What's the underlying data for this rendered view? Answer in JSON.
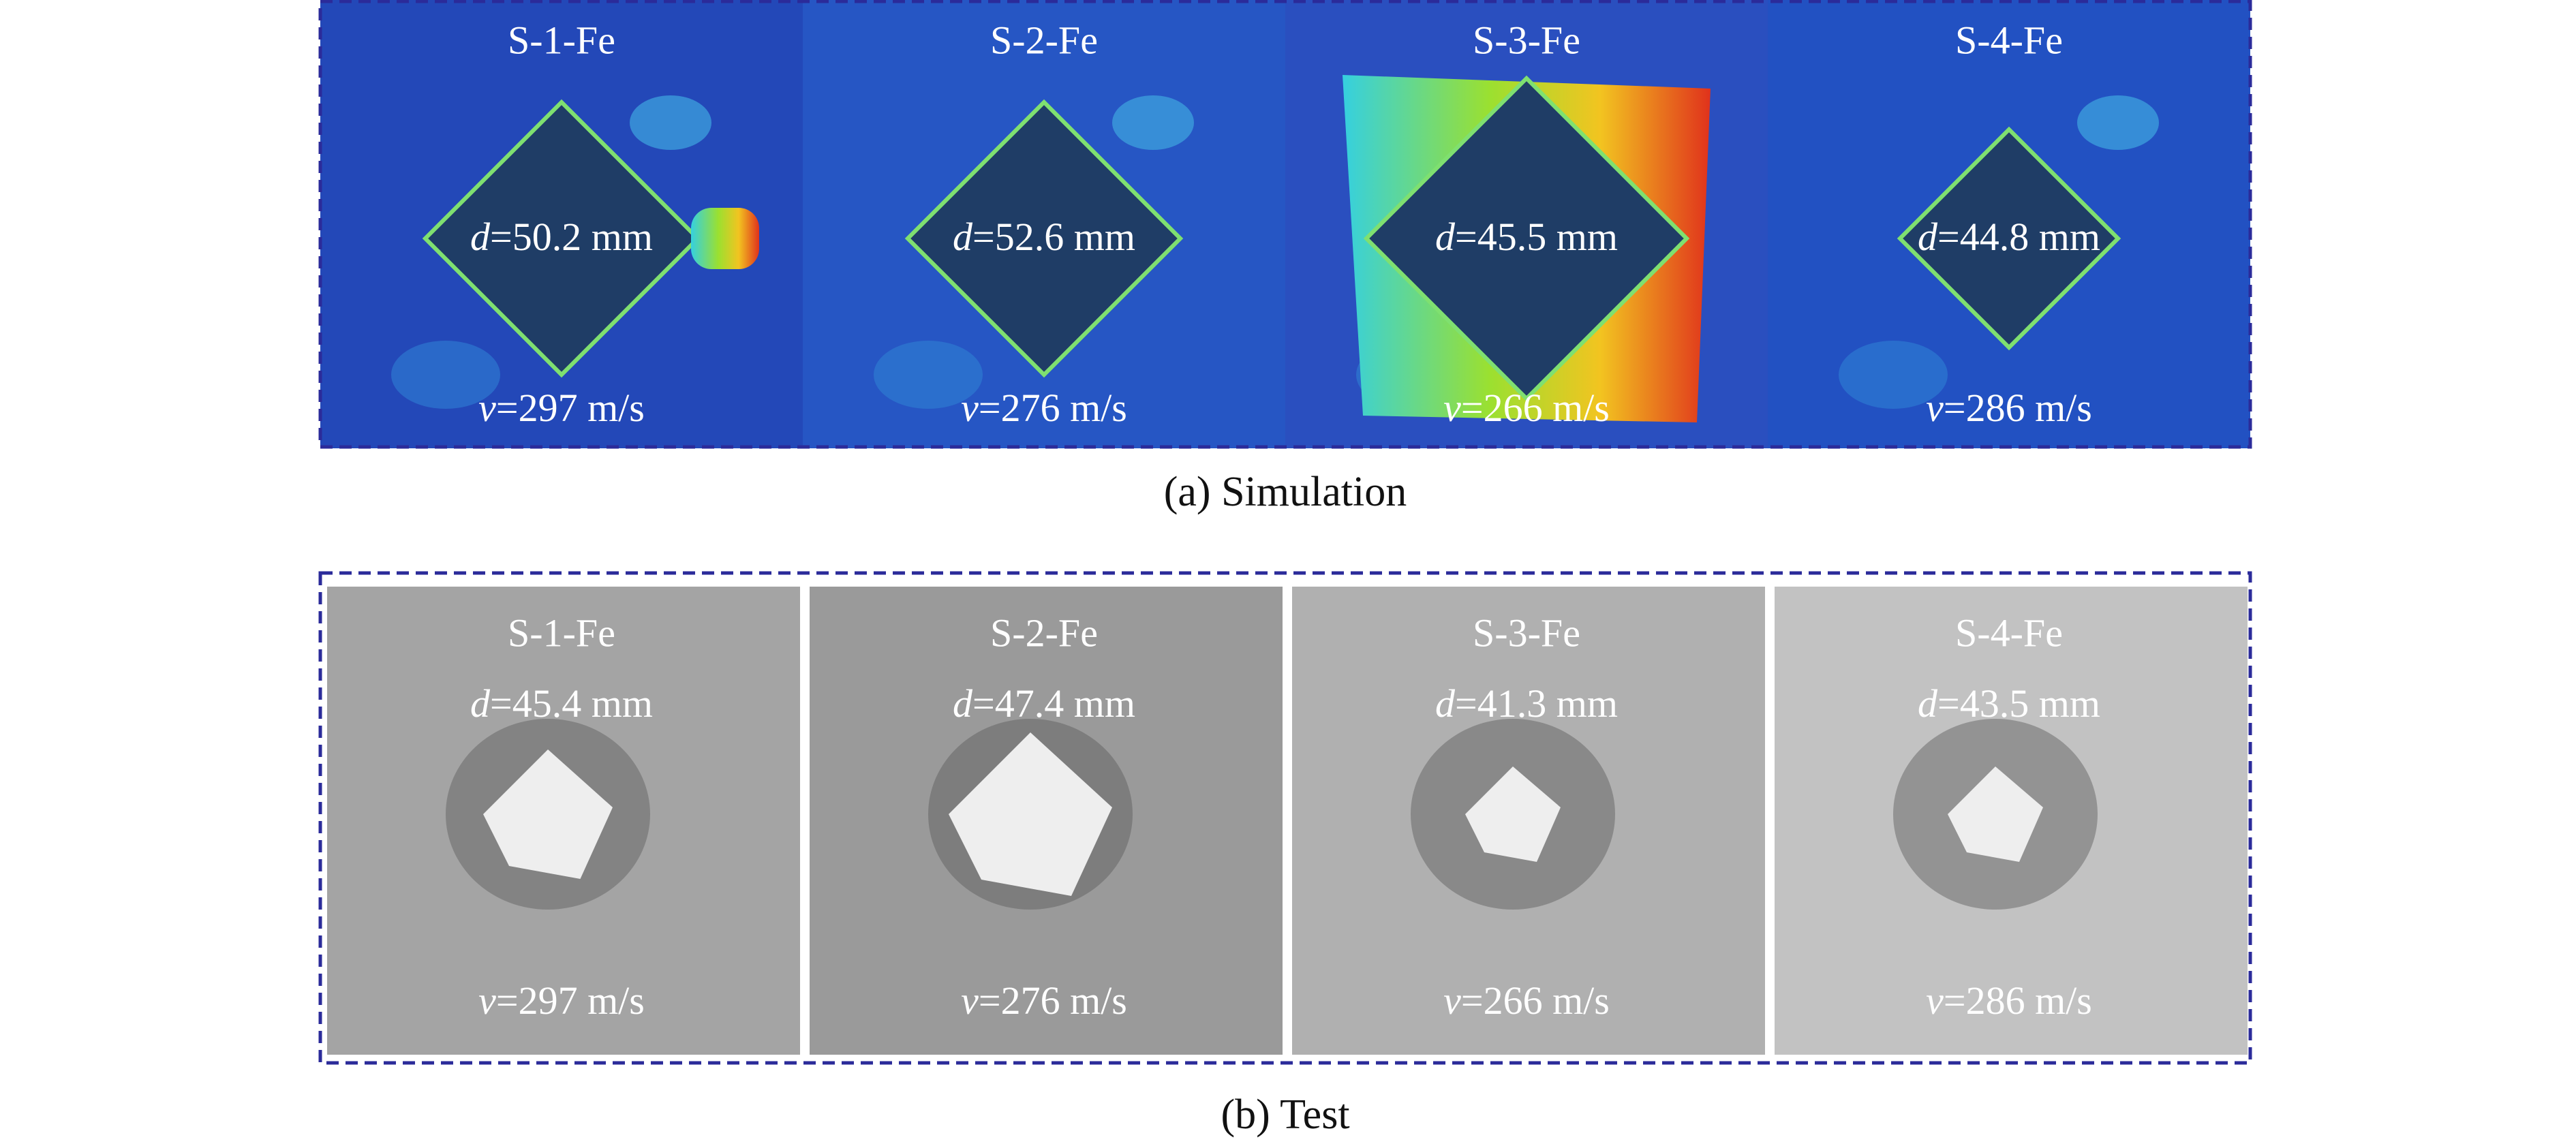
{
  "panels": [
    {
      "caption": "(a) Simulation",
      "cells": [
        {
          "name": "S-1-Fe",
          "d": {
            "var": "d",
            "rest": "=50.2 mm"
          },
          "v": {
            "var": "v",
            "rest": "=297 m/s"
          }
        },
        {
          "name": "S-2-Fe",
          "d": {
            "var": "d",
            "rest": "=52.6 mm"
          },
          "v": {
            "var": "v",
            "rest": "=276 m/s"
          }
        },
        {
          "name": "S-3-Fe",
          "d": {
            "var": "d",
            "rest": "=45.5 mm"
          },
          "v": {
            "var": "v",
            "rest": "=266 m/s"
          }
        },
        {
          "name": "S-4-Fe",
          "d": {
            "var": "d",
            "rest": "=44.8 mm"
          },
          "v": {
            "var": "v",
            "rest": "=286 m/s"
          }
        }
      ]
    },
    {
      "caption": "(b) Test",
      "cells": [
        {
          "name": "S-1-Fe",
          "d": {
            "var": "d",
            "rest": "=45.4 mm"
          },
          "v": {
            "var": "v",
            "rest": "=297 m/s"
          }
        },
        {
          "name": "S-2-Fe",
          "d": {
            "var": "d",
            "rest": "=47.4 mm"
          },
          "v": {
            "var": "v",
            "rest": "=276 m/s"
          }
        },
        {
          "name": "S-3-Fe",
          "d": {
            "var": "d",
            "rest": "=41.3 mm"
          },
          "v": {
            "var": "v",
            "rest": "=266 m/s"
          }
        },
        {
          "name": "S-4-Fe",
          "d": {
            "var": "d",
            "rest": "=43.5 mm"
          },
          "v": {
            "var": "v",
            "rest": "=286 m/s"
          }
        }
      ]
    }
  ]
}
